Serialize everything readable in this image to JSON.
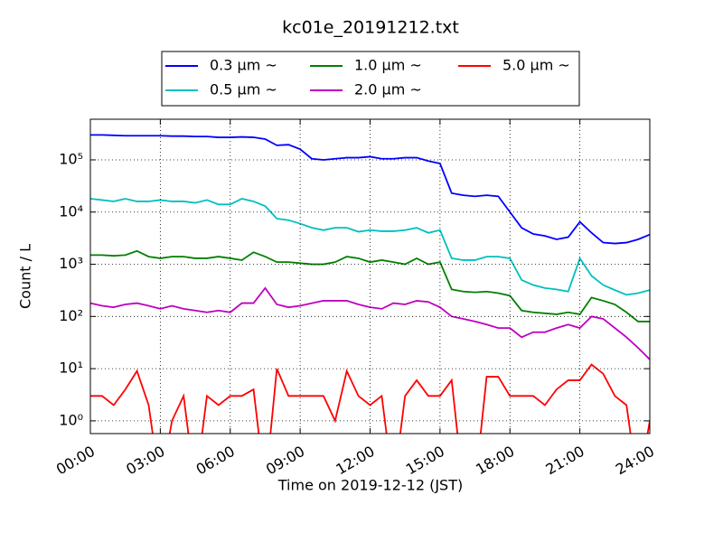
{
  "chart_data": {
    "type": "line",
    "title": "kc01e_20191212.txt",
    "xlabel": "Time on 2019-12-12 (JST)",
    "ylabel": "Count / L",
    "yscale": "log",
    "grid": true,
    "legend": "top",
    "xlim": [
      0,
      24
    ],
    "xticks": [
      {
        "value": 0,
        "label": "00:00"
      },
      {
        "value": 3,
        "label": "03:00"
      },
      {
        "value": 6,
        "label": "06:00"
      },
      {
        "value": 9,
        "label": "09:00"
      },
      {
        "value": 12,
        "label": "12:00"
      },
      {
        "value": 15,
        "label": "15:00"
      },
      {
        "value": 18,
        "label": "18:00"
      },
      {
        "value": 21,
        "label": "21:00"
      },
      {
        "value": 24,
        "label": "24:00"
      }
    ],
    "ylim": [
      0.57,
      600000
    ],
    "yticks": [
      {
        "value": 1,
        "label": "10⁰"
      },
      {
        "value": 10,
        "label": "10¹"
      },
      {
        "value": 100,
        "label": "10²"
      },
      {
        "value": 1000,
        "label": "10³"
      },
      {
        "value": 10000,
        "label": "10⁴"
      },
      {
        "value": 100000,
        "label": "10⁵"
      }
    ],
    "x": [
      0,
      0.5,
      1,
      1.5,
      2,
      2.5,
      3,
      3.5,
      4,
      4.5,
      5,
      5.5,
      6,
      6.5,
      7,
      7.5,
      8,
      8.5,
      9,
      9.5,
      10,
      10.5,
      11,
      11.5,
      12,
      12.5,
      13,
      13.5,
      14,
      14.5,
      15,
      15.5,
      16,
      16.5,
      17,
      17.5,
      18,
      18.5,
      19,
      19.5,
      20,
      20.5,
      21,
      21.5,
      22,
      22.5,
      23,
      23.5,
      24
    ],
    "series": [
      {
        "name": "0.3 μm ~",
        "color": "#0000ff",
        "values": [
          300000,
          300000,
          295000,
          290000,
          290000,
          290000,
          290000,
          285000,
          285000,
          280000,
          280000,
          270000,
          270000,
          275000,
          270000,
          250000,
          190000,
          195000,
          160000,
          105000,
          100000,
          105000,
          110000,
          110000,
          115000,
          105000,
          105000,
          110000,
          110000,
          95000,
          85000,
          23000,
          21000,
          20000,
          21000,
          20000,
          10000,
          5000,
          3800,
          3500,
          3000,
          3300,
          6500,
          4000,
          2600,
          2500,
          2600,
          3000,
          3700
        ]
      },
      {
        "name": "0.5 μm ~",
        "color": "#00bfbf",
        "values": [
          18000,
          17000,
          16000,
          18000,
          16000,
          16000,
          17000,
          16000,
          16000,
          15000,
          17000,
          14000,
          14000,
          18000,
          16000,
          13000,
          7500,
          7000,
          6000,
          5000,
          4500,
          5000,
          5000,
          4200,
          4500,
          4300,
          4300,
          4500,
          5000,
          4000,
          4500,
          1300,
          1200,
          1200,
          1400,
          1400,
          1300,
          500,
          400,
          350,
          330,
          300,
          1300,
          600,
          400,
          320,
          260,
          280,
          320
        ]
      },
      {
        "name": "1.0 μm ~",
        "color": "#008000",
        "values": [
          1500,
          1500,
          1450,
          1500,
          1800,
          1400,
          1300,
          1400,
          1400,
          1300,
          1300,
          1400,
          1300,
          1200,
          1700,
          1400,
          1100,
          1100,
          1050,
          1000,
          1000,
          1100,
          1400,
          1300,
          1100,
          1200,
          1100,
          1000,
          1300,
          1000,
          1100,
          330,
          300,
          290,
          300,
          280,
          250,
          130,
          120,
          115,
          110,
          120,
          110,
          230,
          200,
          170,
          120,
          80,
          80
        ]
      },
      {
        "name": "2.0 μm ~",
        "color": "#bf00bf",
        "values": [
          180,
          160,
          150,
          170,
          180,
          160,
          140,
          160,
          140,
          130,
          120,
          130,
          120,
          180,
          180,
          350,
          170,
          150,
          160,
          180,
          200,
          200,
          200,
          170,
          150,
          140,
          180,
          170,
          200,
          190,
          150,
          100,
          90,
          80,
          70,
          60,
          60,
          40,
          50,
          50,
          60,
          70,
          60,
          100,
          90,
          60,
          40,
          25,
          15
        ]
      },
      {
        "name": "5.0 μm ~",
        "color": "#ff0000",
        "values": [
          3,
          3,
          2,
          4,
          9,
          2,
          0,
          1,
          3,
          0,
          3,
          2,
          3,
          3,
          4,
          0,
          10,
          3,
          3,
          3,
          3,
          1,
          9,
          3,
          2,
          3,
          0,
          3,
          6,
          3,
          3,
          6,
          0,
          0,
          7,
          7,
          3,
          3,
          3,
          2,
          4,
          6,
          6,
          12,
          8,
          3,
          2,
          0,
          1
        ]
      }
    ]
  }
}
